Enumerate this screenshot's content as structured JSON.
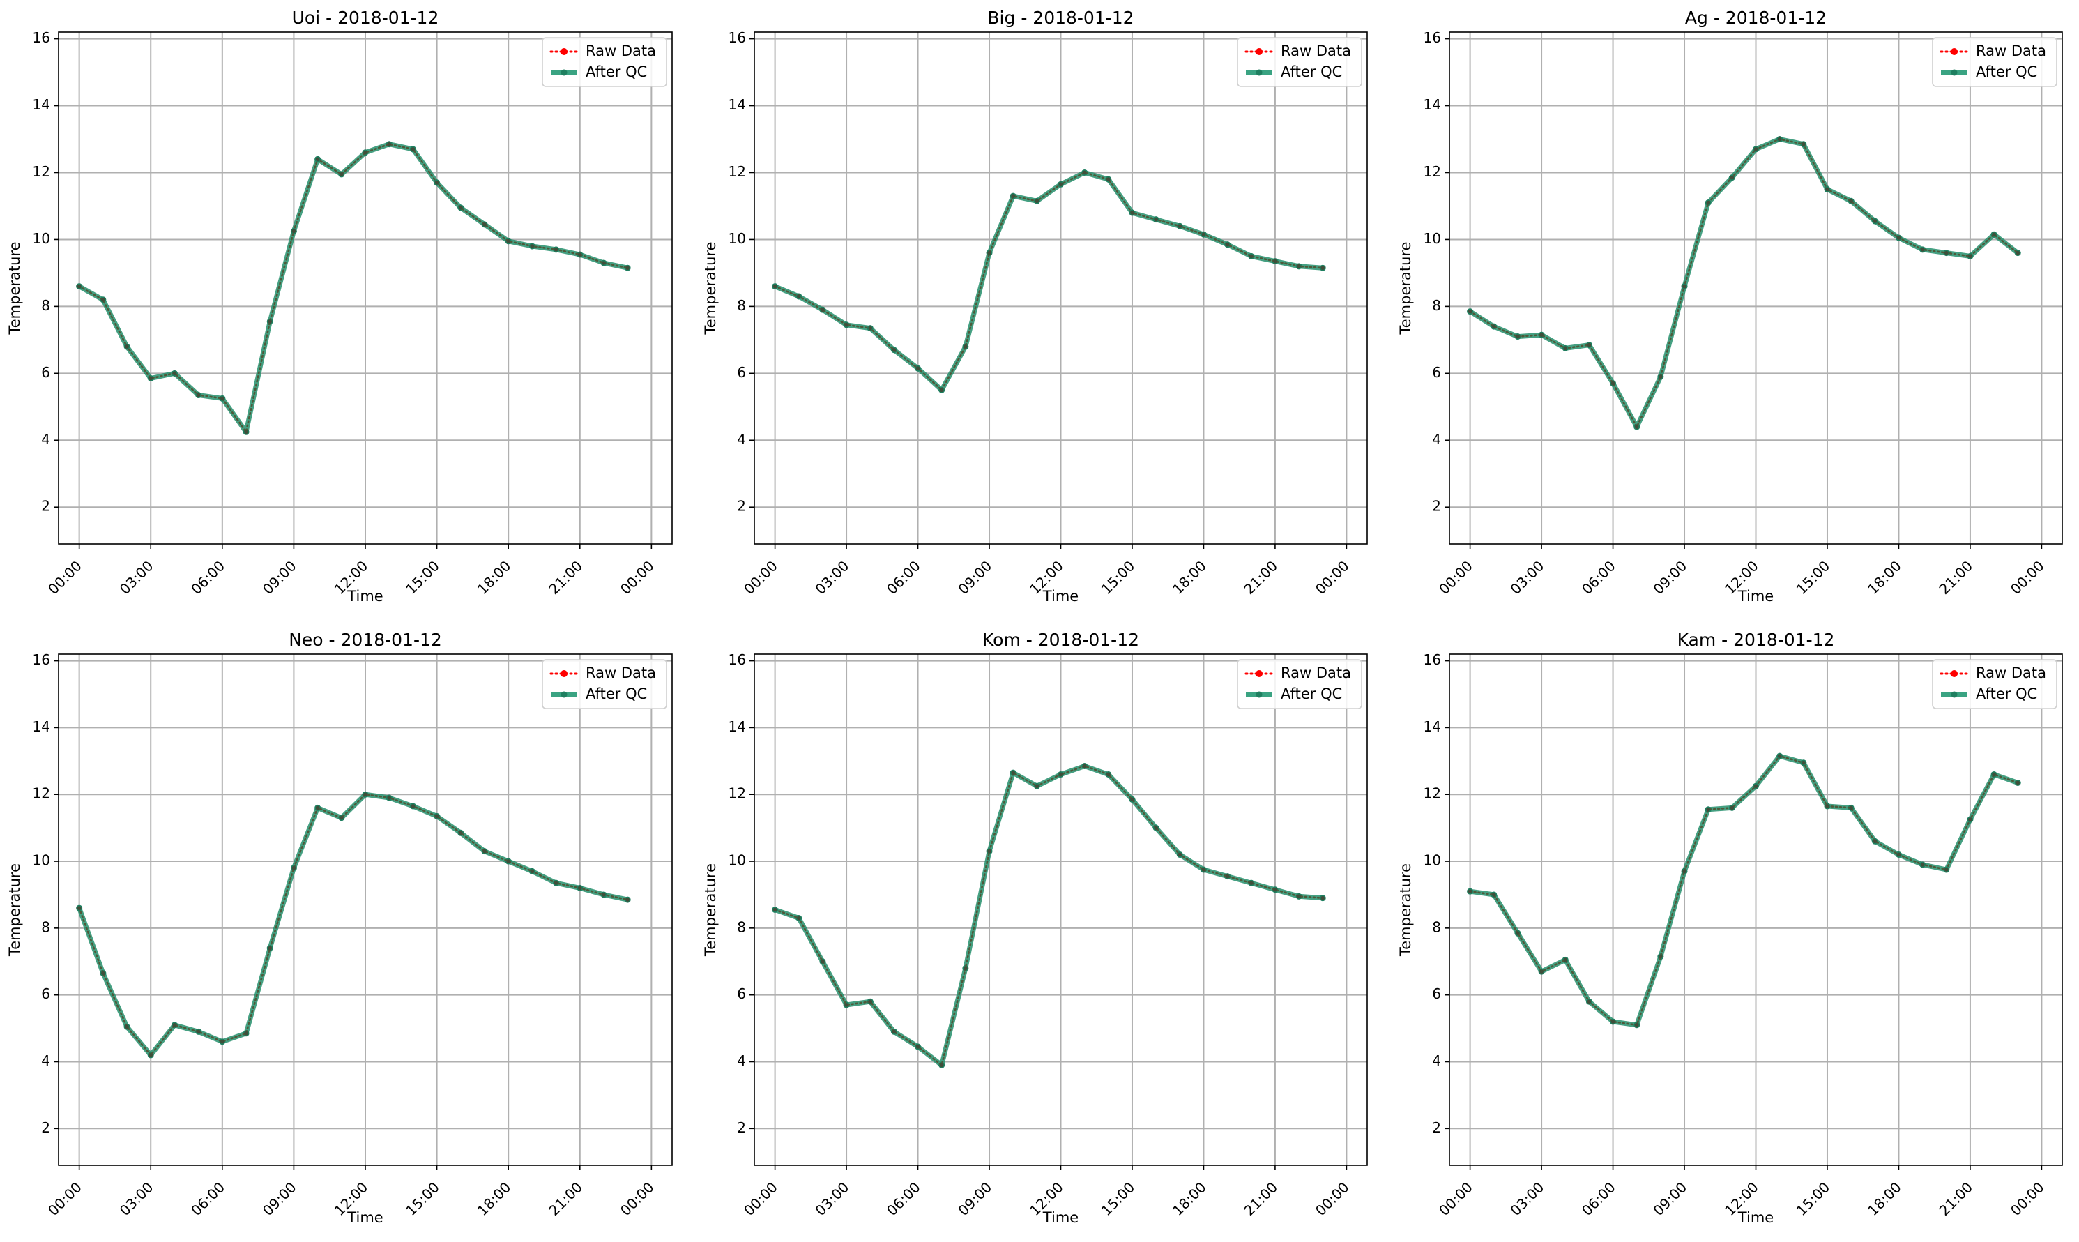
{
  "chart_data": [
    {
      "type": "line",
      "title": "Uoi - 2018-01-12",
      "xlabel": "Time",
      "ylabel": "Temperature",
      "x_ticks": [
        "00:00",
        "03:00",
        "06:00",
        "09:00",
        "12:00",
        "15:00",
        "18:00",
        "21:00",
        "00:00"
      ],
      "y_ticks": [
        2,
        4,
        6,
        8,
        10,
        12,
        14,
        16
      ],
      "ylim": [
        0.9,
        16.2
      ],
      "grid": true,
      "legend_position": "top-right",
      "x": [
        "00:00",
        "01:00",
        "02:00",
        "03:00",
        "04:00",
        "05:00",
        "06:00",
        "07:00",
        "08:00",
        "09:00",
        "10:00",
        "11:00",
        "12:00",
        "13:00",
        "14:00",
        "15:00",
        "16:00",
        "17:00",
        "18:00",
        "19:00",
        "20:00",
        "21:00",
        "22:00",
        "23:00"
      ],
      "series": [
        {
          "name": "Raw Data",
          "color": "#ff0000",
          "style": "dotted",
          "values": [
            8.6,
            8.2,
            6.8,
            5.85,
            6.0,
            5.35,
            5.25,
            4.25,
            7.55,
            10.25,
            12.4,
            11.95,
            12.6,
            12.85,
            12.7,
            11.7,
            10.95,
            10.45,
            9.95,
            9.8,
            9.7,
            9.55,
            9.3,
            9.15
          ]
        },
        {
          "name": "After QC",
          "color": "#2ca02c",
          "style": "solid",
          "values": [
            8.6,
            8.2,
            6.8,
            5.85,
            6.0,
            5.35,
            5.25,
            4.25,
            7.55,
            10.25,
            12.4,
            11.95,
            12.6,
            12.85,
            12.7,
            11.7,
            10.95,
            10.45,
            9.95,
            9.8,
            9.7,
            9.55,
            9.3,
            9.15
          ]
        }
      ]
    },
    {
      "type": "line",
      "title": "Big - 2018-01-12",
      "xlabel": "Time",
      "ylabel": "Temperature",
      "x_ticks": [
        "00:00",
        "03:00",
        "06:00",
        "09:00",
        "12:00",
        "15:00",
        "18:00",
        "21:00",
        "00:00"
      ],
      "y_ticks": [
        2,
        4,
        6,
        8,
        10,
        12,
        14,
        16
      ],
      "ylim": [
        0.9,
        16.2
      ],
      "grid": true,
      "legend_position": "top-right",
      "x": [
        "00:00",
        "01:00",
        "02:00",
        "03:00",
        "04:00",
        "05:00",
        "06:00",
        "07:00",
        "08:00",
        "09:00",
        "10:00",
        "11:00",
        "12:00",
        "13:00",
        "14:00",
        "15:00",
        "16:00",
        "17:00",
        "18:00",
        "19:00",
        "20:00",
        "21:00",
        "22:00",
        "23:00"
      ],
      "series": [
        {
          "name": "Raw Data",
          "color": "#ff0000",
          "style": "dotted",
          "values": [
            8.6,
            8.3,
            7.9,
            7.45,
            7.35,
            6.7,
            6.15,
            5.5,
            6.8,
            9.6,
            11.3,
            11.15,
            11.65,
            12.0,
            11.8,
            10.8,
            10.6,
            10.4,
            10.15,
            9.85,
            9.5,
            9.35,
            9.2,
            9.15
          ]
        },
        {
          "name": "After QC",
          "color": "#2ca02c",
          "style": "solid",
          "values": [
            8.6,
            8.3,
            7.9,
            7.45,
            7.35,
            6.7,
            6.15,
            5.5,
            6.8,
            9.6,
            11.3,
            11.15,
            11.65,
            12.0,
            11.8,
            10.8,
            10.6,
            10.4,
            10.15,
            9.85,
            9.5,
            9.35,
            9.2,
            9.15
          ]
        }
      ]
    },
    {
      "type": "line",
      "title": "Ag - 2018-01-12",
      "xlabel": "Time",
      "ylabel": "Temperature",
      "x_ticks": [
        "00:00",
        "03:00",
        "06:00",
        "09:00",
        "12:00",
        "15:00",
        "18:00",
        "21:00",
        "00:00"
      ],
      "y_ticks": [
        2,
        4,
        6,
        8,
        10,
        12,
        14,
        16
      ],
      "ylim": [
        0.9,
        16.2
      ],
      "grid": true,
      "legend_position": "top-right",
      "x": [
        "00:00",
        "01:00",
        "02:00",
        "03:00",
        "04:00",
        "05:00",
        "06:00",
        "07:00",
        "08:00",
        "09:00",
        "10:00",
        "11:00",
        "12:00",
        "13:00",
        "14:00",
        "15:00",
        "16:00",
        "17:00",
        "18:00",
        "19:00",
        "20:00",
        "21:00",
        "22:00",
        "23:00"
      ],
      "series": [
        {
          "name": "Raw Data",
          "color": "#ff0000",
          "style": "dotted",
          "values": [
            7.85,
            7.4,
            7.1,
            7.15,
            6.75,
            6.85,
            5.7,
            4.4,
            5.9,
            8.6,
            11.1,
            11.85,
            12.7,
            13.0,
            12.85,
            11.5,
            11.15,
            10.55,
            10.05,
            9.7,
            9.6,
            9.5,
            10.15,
            9.6
          ]
        },
        {
          "name": "After QC",
          "color": "#2ca02c",
          "style": "solid",
          "values": [
            7.85,
            7.4,
            7.1,
            7.15,
            6.75,
            6.85,
            5.7,
            4.4,
            5.9,
            8.6,
            11.1,
            11.85,
            12.7,
            13.0,
            12.85,
            11.5,
            11.15,
            10.55,
            10.05,
            9.7,
            9.6,
            9.5,
            10.15,
            9.6
          ]
        }
      ]
    },
    {
      "type": "line",
      "title": "Neo - 2018-01-12",
      "xlabel": "Time",
      "ylabel": "Temperature",
      "x_ticks": [
        "00:00",
        "03:00",
        "06:00",
        "09:00",
        "12:00",
        "15:00",
        "18:00",
        "21:00",
        "00:00"
      ],
      "y_ticks": [
        2,
        4,
        6,
        8,
        10,
        12,
        14,
        16
      ],
      "ylim": [
        0.9,
        16.2
      ],
      "grid": true,
      "legend_position": "top-right",
      "x": [
        "00:00",
        "01:00",
        "02:00",
        "03:00",
        "04:00",
        "05:00",
        "06:00",
        "07:00",
        "08:00",
        "09:00",
        "10:00",
        "11:00",
        "12:00",
        "13:00",
        "14:00",
        "15:00",
        "16:00",
        "17:00",
        "18:00",
        "19:00",
        "20:00",
        "21:00",
        "22:00",
        "23:00"
      ],
      "series": [
        {
          "name": "Raw Data",
          "color": "#ff0000",
          "style": "dotted",
          "values": [
            8.6,
            6.65,
            5.05,
            4.2,
            5.1,
            4.9,
            4.6,
            4.85,
            7.4,
            9.8,
            11.6,
            11.3,
            12.0,
            11.9,
            11.65,
            11.35,
            10.85,
            10.3,
            10.0,
            9.7,
            9.35,
            9.2,
            9.0,
            8.85
          ]
        },
        {
          "name": "After QC",
          "color": "#2ca02c",
          "style": "solid",
          "values": [
            8.6,
            6.65,
            5.05,
            4.2,
            5.1,
            4.9,
            4.6,
            4.85,
            7.4,
            9.8,
            11.6,
            11.3,
            12.0,
            11.9,
            11.65,
            11.35,
            10.85,
            10.3,
            10.0,
            9.7,
            9.35,
            9.2,
            9.0,
            8.85
          ]
        }
      ]
    },
    {
      "type": "line",
      "title": "Kom - 2018-01-12",
      "xlabel": "Time",
      "ylabel": "Temperature",
      "x_ticks": [
        "00:00",
        "03:00",
        "06:00",
        "09:00",
        "12:00",
        "15:00",
        "18:00",
        "21:00",
        "00:00"
      ],
      "y_ticks": [
        2,
        4,
        6,
        8,
        10,
        12,
        14,
        16
      ],
      "ylim": [
        0.9,
        16.2
      ],
      "grid": true,
      "legend_position": "top-right",
      "x": [
        "00:00",
        "01:00",
        "02:00",
        "03:00",
        "04:00",
        "05:00",
        "06:00",
        "07:00",
        "08:00",
        "09:00",
        "10:00",
        "11:00",
        "12:00",
        "13:00",
        "14:00",
        "15:00",
        "16:00",
        "17:00",
        "18:00",
        "19:00",
        "20:00",
        "21:00",
        "22:00",
        "23:00"
      ],
      "series": [
        {
          "name": "Raw Data",
          "color": "#ff0000",
          "style": "dotted",
          "values": [
            8.55,
            8.3,
            7.0,
            5.7,
            5.8,
            4.9,
            4.45,
            3.9,
            6.8,
            10.3,
            12.65,
            12.25,
            12.6,
            12.85,
            12.6,
            11.85,
            11.0,
            10.2,
            9.75,
            9.55,
            9.35,
            9.15,
            8.95,
            8.9
          ]
        },
        {
          "name": "After QC",
          "color": "#2ca02c",
          "style": "solid",
          "values": [
            8.55,
            8.3,
            7.0,
            5.7,
            5.8,
            4.9,
            4.45,
            3.9,
            6.8,
            10.3,
            12.65,
            12.25,
            12.6,
            12.85,
            12.6,
            11.85,
            11.0,
            10.2,
            9.75,
            9.55,
            9.35,
            9.15,
            8.95,
            8.9
          ]
        }
      ]
    },
    {
      "type": "line",
      "title": "Kam - 2018-01-12",
      "xlabel": "Time",
      "ylabel": "Temperature",
      "x_ticks": [
        "00:00",
        "03:00",
        "06:00",
        "09:00",
        "12:00",
        "15:00",
        "18:00",
        "21:00",
        "00:00"
      ],
      "y_ticks": [
        2,
        4,
        6,
        8,
        10,
        12,
        14,
        16
      ],
      "ylim": [
        0.9,
        16.2
      ],
      "grid": true,
      "legend_position": "top-right",
      "x": [
        "00:00",
        "01:00",
        "02:00",
        "03:00",
        "04:00",
        "05:00",
        "06:00",
        "07:00",
        "08:00",
        "09:00",
        "10:00",
        "11:00",
        "12:00",
        "13:00",
        "14:00",
        "15:00",
        "16:00",
        "17:00",
        "18:00",
        "19:00",
        "20:00",
        "21:00",
        "22:00",
        "23:00"
      ],
      "series": [
        {
          "name": "Raw Data",
          "color": "#ff0000",
          "style": "dotted",
          "values": [
            9.1,
            9.0,
            7.85,
            6.7,
            7.05,
            5.8,
            5.2,
            5.1,
            7.15,
            9.7,
            11.55,
            11.6,
            12.25,
            13.15,
            12.95,
            11.65,
            11.6,
            10.6,
            10.2,
            9.9,
            9.75,
            11.25,
            12.6,
            12.35
          ]
        },
        {
          "name": "After QC",
          "color": "#2ca02c",
          "style": "solid",
          "values": [
            9.1,
            9.0,
            7.85,
            6.7,
            7.05,
            5.8,
            5.2,
            5.1,
            7.15,
            9.7,
            11.55,
            11.6,
            12.25,
            13.15,
            12.95,
            11.65,
            11.6,
            10.6,
            10.2,
            9.9,
            9.75,
            11.25,
            12.6,
            12.35
          ]
        }
      ]
    }
  ]
}
